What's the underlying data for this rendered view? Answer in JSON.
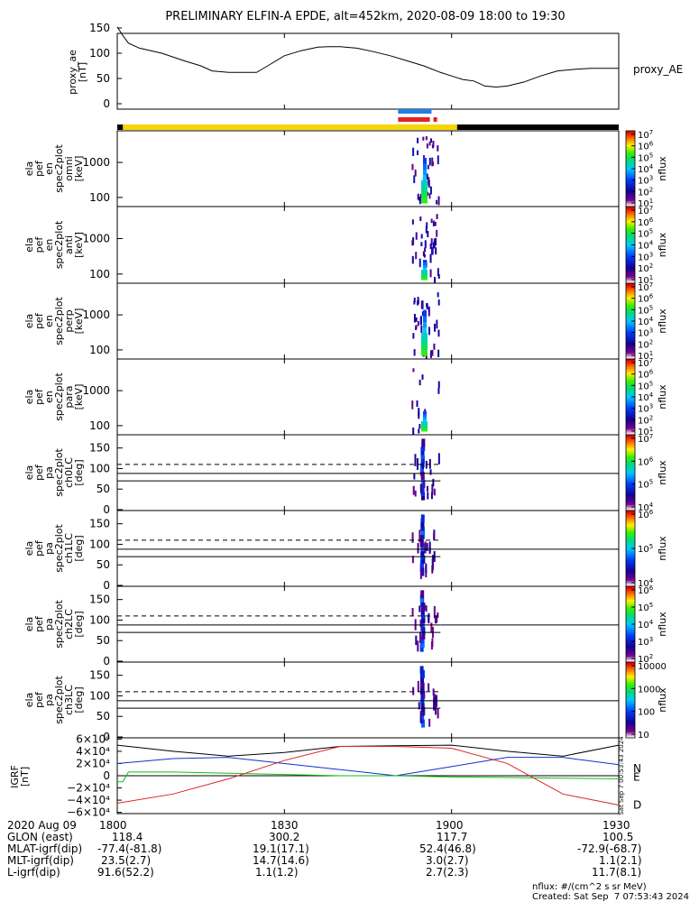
{
  "title": "PRELIMINARY ELFIN-A EPDE, alt=452km, 2020-08-09 18:00 to 19:30",
  "colors": {
    "sunlit": "#f8d400",
    "shadow": "#000000",
    "bar_blue": "#1f7fe6",
    "bar_red": "#e62020",
    "ae_line": "#000000",
    "grf_n": "#1030d0",
    "grf_e": "#10c010",
    "grf_d": "#e02020"
  },
  "time_axis": {
    "start_min": 0,
    "end_min": 90,
    "ticks": [
      {
        "label": "1800",
        "min": 0
      },
      {
        "label": "1830",
        "min": 30
      },
      {
        "label": "1900",
        "min": 60
      },
      {
        "label": "1930",
        "min": 90
      }
    ]
  },
  "status_bars": {
    "sunlit_minutes": [
      1,
      61
    ],
    "blue_minutes": [
      50.4,
      56.4
    ],
    "red_minutes": [
      50.4,
      57.4
    ]
  },
  "chart_data": [
    {
      "id": "proxy_ae",
      "type": "line",
      "ylabel": [
        "proxy_ae",
        "[nT]"
      ],
      "legend": "proxy_AE",
      "ylim": [
        0,
        150
      ],
      "yticks": [
        "0",
        "50",
        "100",
        "150"
      ],
      "x": [
        0,
        1,
        2,
        4,
        8,
        12,
        15,
        17,
        20,
        25,
        27,
        30,
        33,
        36,
        38,
        40,
        43,
        46,
        49,
        52,
        55,
        58,
        60,
        62,
        64,
        66,
        68,
        70,
        73,
        76,
        79,
        82,
        85,
        88,
        90
      ],
      "values": [
        152,
        135,
        120,
        110,
        100,
        85,
        75,
        65,
        62,
        62,
        75,
        95,
        105,
        112,
        113,
        113,
        110,
        103,
        95,
        85,
        75,
        62,
        55,
        48,
        45,
        35,
        33,
        35,
        43,
        55,
        65,
        68,
        70,
        70,
        70
      ]
    },
    {
      "id": "omni",
      "type": "heatmap",
      "ylabel": [
        "ela",
        "pef",
        "en",
        "spec2plot",
        "omni",
        "[keV]"
      ],
      "yscale": "log",
      "ylim": [
        55,
        8000
      ],
      "yticks": [
        "100",
        "1000"
      ],
      "cbar": {
        "label": "nflux",
        "ticks": [
          "10^1",
          "10^2",
          "10^3",
          "10^4",
          "10^5",
          "10^6",
          "10^7"
        ]
      }
    },
    {
      "id": "anti",
      "type": "heatmap",
      "ylabel": [
        "ela",
        "pef",
        "en",
        "spec2plot",
        "anti",
        "[keV]"
      ],
      "yscale": "log",
      "ylim": [
        55,
        8000
      ],
      "yticks": [
        "100",
        "1000"
      ],
      "cbar": {
        "label": "nflux",
        "ticks": [
          "10^1",
          "10^2",
          "10^3",
          "10^4",
          "10^5",
          "10^6",
          "10^7"
        ]
      }
    },
    {
      "id": "perp",
      "type": "heatmap",
      "ylabel": [
        "ela",
        "pef",
        "en",
        "spec2plot",
        "perp",
        "[keV]"
      ],
      "yscale": "log",
      "ylim": [
        55,
        8000
      ],
      "yticks": [
        "100",
        "1000"
      ],
      "cbar": {
        "label": "nflux",
        "ticks": [
          "10^1",
          "10^2",
          "10^3",
          "10^4",
          "10^5",
          "10^6",
          "10^7"
        ]
      }
    },
    {
      "id": "para",
      "type": "heatmap",
      "ylabel": [
        "ela",
        "pef",
        "en",
        "spec2plot",
        "para",
        "[keV]"
      ],
      "yscale": "log",
      "ylim": [
        55,
        8000
      ],
      "yticks": [
        "100",
        "1000"
      ],
      "cbar": {
        "label": "nflux",
        "ticks": [
          "10^1",
          "10^2",
          "10^3",
          "10^4",
          "10^5",
          "10^6",
          "10^7"
        ]
      }
    },
    {
      "id": "ch0LC",
      "type": "heatmap",
      "ylabel": [
        "ela",
        "pef",
        "pa",
        "spec2plot",
        "ch0LC",
        "[deg]"
      ],
      "ylim": [
        0,
        180
      ],
      "yticks": [
        "0",
        "50",
        "100",
        "150"
      ],
      "cbar": {
        "label": "nflux",
        "ticks": [
          "10^4",
          "10^5",
          "10^6",
          "10^7"
        ]
      }
    },
    {
      "id": "ch1LC",
      "type": "heatmap",
      "ylabel": [
        "ela",
        "pef",
        "pa",
        "spec2plot",
        "ch1LC",
        "[deg]"
      ],
      "ylim": [
        0,
        180
      ],
      "yticks": [
        "0",
        "50",
        "100",
        "150"
      ],
      "cbar": {
        "label": "nflux",
        "ticks": [
          "10^4",
          "10^5",
          "10^6"
        ]
      }
    },
    {
      "id": "ch2LC",
      "type": "heatmap",
      "ylabel": [
        "ela",
        "pef",
        "pa",
        "spec2plot",
        "ch2LC",
        "[deg]"
      ],
      "ylim": [
        0,
        180
      ],
      "yticks": [
        "0",
        "50",
        "100",
        "150"
      ],
      "cbar": {
        "label": "nflux",
        "ticks": [
          "10^2",
          "10^3",
          "10^4",
          "10^5",
          "10^6"
        ]
      }
    },
    {
      "id": "ch3LC",
      "type": "heatmap",
      "ylabel": [
        "ela",
        "pef",
        "pa",
        "spec2plot",
        "ch3LC",
        "[deg]"
      ],
      "ylim": [
        0,
        180
      ],
      "yticks": [
        "0",
        "50",
        "100",
        "150"
      ],
      "cbar": {
        "label": "nflux",
        "ticks": [
          "10",
          "100",
          "1000",
          "10000"
        ]
      }
    },
    {
      "id": "igrf",
      "type": "line",
      "ylabel": [
        "IGRF",
        "[nT]"
      ],
      "ylim": [
        -62000,
        62000
      ],
      "yticks": [
        "6×10⁴",
        "4×10⁴",
        "2×10⁴",
        "0",
        "−2×10⁴",
        "−4×10⁴",
        "−6×10⁴"
      ],
      "ytick_values": [
        60000,
        40000,
        20000,
        0,
        -20000,
        -40000,
        -60000
      ],
      "side_text": "Sat Sep  7 00:53:43 2024",
      "series": [
        {
          "name": "total",
          "x": [
            0,
            10,
            20,
            30,
            40,
            50,
            60,
            70,
            80,
            90
          ],
          "values": [
            50000,
            40000,
            32000,
            38000,
            48000,
            49000,
            50000,
            40000,
            32000,
            50000
          ]
        },
        {
          "name": "N",
          "x": [
            0,
            10,
            20,
            30,
            40,
            50,
            60,
            70,
            80,
            90
          ],
          "values": [
            20000,
            28000,
            30000,
            20000,
            10000,
            0,
            15000,
            30000,
            30000,
            18000
          ]
        },
        {
          "name": "E",
          "x": [
            0,
            1,
            2,
            10,
            20,
            30,
            40,
            50,
            60,
            70,
            80,
            90
          ],
          "values": [
            -10000,
            -10000,
            6000,
            6000,
            4000,
            2000,
            0,
            0,
            -2000,
            -3000,
            -4000,
            -5000
          ]
        },
        {
          "name": "D",
          "x": [
            0,
            10,
            20,
            30,
            40,
            50,
            60,
            70,
            80,
            90
          ],
          "values": [
            -45000,
            -30000,
            -5000,
            25000,
            48000,
            48000,
            45000,
            20000,
            -30000,
            -48000
          ]
        }
      ],
      "labels": [
        "N",
        "E",
        "D"
      ]
    }
  ],
  "footer": {
    "date": "2020 Aug 09",
    "rows": [
      {
        "label": "GLON (east)",
        "values": [
          "118.4",
          "300.2",
          "117.7",
          "100.5"
        ]
      },
      {
        "label": "MLAT-igrf(dip)",
        "values": [
          "-77.4(-81.8)",
          "19.1(17.1)",
          "52.4(46.8)",
          "-72.9(-68.7)"
        ]
      },
      {
        "label": "MLT-igrf(dip)",
        "values": [
          "23.5(2.7)",
          "14.7(14.6)",
          "3.0(2.7)",
          "1.1(2.1)"
        ]
      },
      {
        "label": "L-igrf(dip)",
        "values": [
          "91.6(52.2)",
          "1.1(1.2)",
          "2.7(2.3)",
          "11.7(8.1)"
        ]
      }
    ],
    "units_note": "nflux: #/(cm^2 s sr MeV)",
    "created": "Created: Sat Sep  7 07:53:43 2024"
  }
}
